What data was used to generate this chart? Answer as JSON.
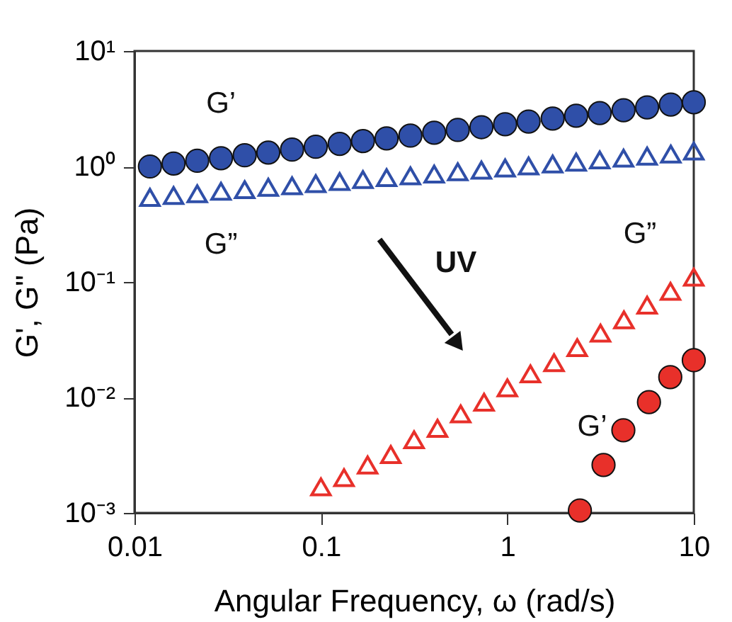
{
  "chart_data": {
    "type": "scatter",
    "xlabel": "Angular Frequency, ω (rad/s)",
    "ylabel": "G', G\" (Pa)",
    "log": "xy",
    "grid": false,
    "legend": false,
    "xlim": [
      0.01,
      10
    ],
    "xticks": [
      0.01,
      0.1,
      1,
      10
    ],
    "ylim": [
      0.001,
      10
    ],
    "yticks": [
      {
        "value": 0.001,
        "label": "10⁻³"
      },
      {
        "value": 0.01,
        "label": "10⁻²"
      },
      {
        "value": 0.1,
        "label": "10⁻¹"
      },
      {
        "value": 1,
        "label": "10⁰"
      },
      {
        "value": 10,
        "label": "10¹"
      }
    ],
    "series": [
      {
        "name": "G’",
        "color": "#2f4fa8",
        "marker": "circle",
        "x": [
          0.0121,
          0.0162,
          0.0217,
          0.0291,
          0.039,
          0.0522,
          0.07,
          0.0938,
          0.126,
          0.168,
          0.225,
          0.302,
          0.405,
          0.542,
          0.726,
          0.973,
          1.3,
          1.75,
          2.34,
          3.13,
          4.2,
          5.62,
          7.53,
          10
        ],
        "values": [
          1.0,
          1.06,
          1.12,
          1.18,
          1.25,
          1.32,
          1.4,
          1.48,
          1.57,
          1.66,
          1.75,
          1.85,
          1.96,
          2.07,
          2.19,
          2.32,
          2.45,
          2.6,
          2.75,
          2.9,
          3.07,
          3.25,
          3.44,
          3.6
        ]
      },
      {
        "name": "G”",
        "color": "#2f4fa8",
        "marker": "triangle",
        "x": [
          0.0121,
          0.0162,
          0.0217,
          0.0291,
          0.039,
          0.0522,
          0.07,
          0.0938,
          0.126,
          0.168,
          0.225,
          0.302,
          0.405,
          0.542,
          0.726,
          0.973,
          1.3,
          1.75,
          2.34,
          3.13,
          4.2,
          5.62,
          7.53,
          10
        ],
        "values": [
          0.54,
          0.56,
          0.58,
          0.61,
          0.63,
          0.66,
          0.68,
          0.71,
          0.74,
          0.77,
          0.8,
          0.83,
          0.86,
          0.9,
          0.93,
          0.97,
          1.01,
          1.05,
          1.09,
          1.14,
          1.18,
          1.23,
          1.28,
          1.36
        ]
      },
      {
        "name": "G”",
        "color": "#e8302a",
        "marker": "triangle",
        "x": [
          0.1,
          0.133,
          0.178,
          0.237,
          0.316,
          0.422,
          0.562,
          0.75,
          1.0,
          1.33,
          1.78,
          2.37,
          3.16,
          4.22,
          5.62,
          7.5,
          10
        ],
        "values": [
          0.00168,
          0.00202,
          0.0026,
          0.0032,
          0.0043,
          0.0054,
          0.0072,
          0.0091,
          0.0121,
          0.016,
          0.02,
          0.027,
          0.036,
          0.047,
          0.063,
          0.083,
          0.11
        ]
      },
      {
        "name": "G’",
        "color": "#e8302a",
        "marker": "circle",
        "x": [
          2.45,
          3.28,
          4.19,
          5.75,
          7.48,
          10
        ],
        "values": [
          0.00105,
          0.0026,
          0.0052,
          0.0091,
          0.015,
          0.021
        ]
      }
    ],
    "annotations": [
      "UV"
    ]
  }
}
